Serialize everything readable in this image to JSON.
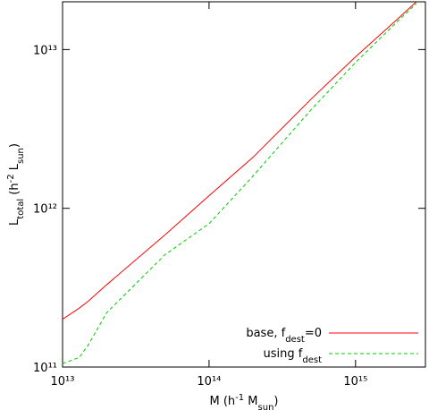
{
  "chart_data": {
    "type": "line",
    "x_label": [
      {
        "text": "M (h"
      },
      {
        "text": "-1",
        "sup": true
      },
      {
        "text": " M"
      },
      {
        "text": "sun",
        "sub": true
      },
      {
        "text": ")"
      }
    ],
    "y_label": [
      {
        "text": "L"
      },
      {
        "text": "total",
        "sub": true
      },
      {
        "text": " (h"
      },
      {
        "text": "-2",
        "sup": true
      },
      {
        "text": " L"
      },
      {
        "text": "sun",
        "sub": true
      },
      {
        "text": ")"
      }
    ],
    "x": [
      10000000000000.0,
      13000000000000.0,
      15000000000000.0,
      20000000000000.0,
      50000000000000.0,
      100000000000000.0,
      200000000000000.0,
      500000000000000.0,
      1000000000000000.0,
      2000000000000000.0,
      2600000000000000.0
    ],
    "series": [
      {
        "name": [
          {
            "text": "base, f"
          },
          {
            "text": "dest",
            "sub": true
          },
          {
            "text": "=0"
          }
        ],
        "color": "#ff0000",
        "dash": false,
        "values": [
          200000000000.0,
          235000000000.0,
          260000000000.0,
          330000000000.0,
          680000000000.0,
          1200000000000.0,
          2100000000000.0,
          4900000000000.0,
          9000000000000.0,
          16000000000000.0,
          20000000000000.0
        ]
      },
      {
        "name": [
          {
            "text": "using f"
          },
          {
            "text": "dest",
            "sub": true
          }
        ],
        "color": "#00cc00",
        "dash": true,
        "values": [
          105000000000.0,
          115000000000.0,
          138000000000.0,
          220000000000.0,
          510000000000.0,
          800000000000.0,
          1600000000000.0,
          4200000000000.0,
          8300000000000.0,
          15500000000000.0,
          19500000000000.0
        ]
      }
    ],
    "xlim": [
      10000000000000.0,
      3000000000000000.0
    ],
    "ylim": [
      100000000000.0,
      20000000000000.0
    ],
    "xticks": [
      {
        "value": 10000000000000.0,
        "label": "10¹³"
      },
      {
        "value": 100000000000000.0,
        "label": "10¹⁴"
      },
      {
        "value": 1000000000000000.0,
        "label": "10¹⁵"
      }
    ],
    "yticks": [
      {
        "value": 100000000000.0,
        "label": "10¹¹"
      },
      {
        "value": 1000000000000.0,
        "label": "10¹²"
      },
      {
        "value": 10000000000000.0,
        "label": "10¹³"
      }
    ],
    "log_x": true,
    "log_y": true,
    "grid": false,
    "legend": "lower right"
  }
}
